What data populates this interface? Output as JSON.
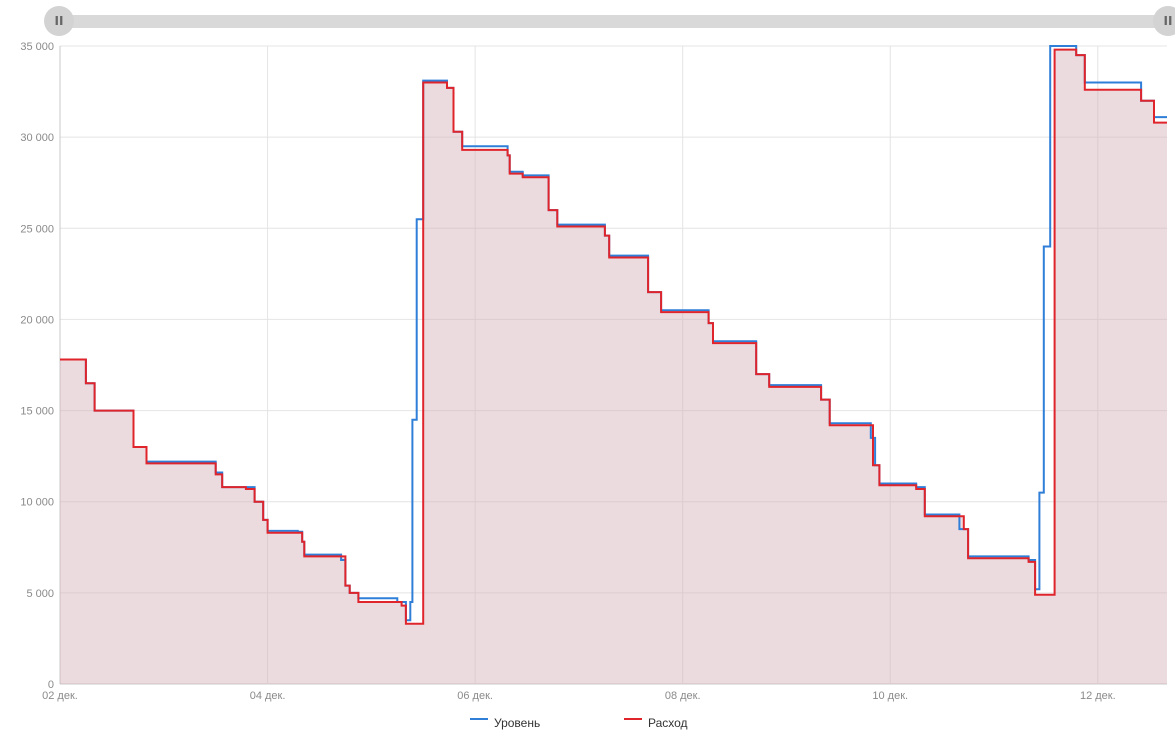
{
  "chart_data": {
    "type": "area",
    "x_type": "datetime",
    "x_range": [
      "2023-12-02T00:00",
      "2023-12-12T16:00"
    ],
    "x_ticks": [
      "02 дек.",
      "04 дек.",
      "06 дек.",
      "08 дек.",
      "10 дек.",
      "12 дек."
    ],
    "x_tick_dates": [
      "2023-12-02",
      "2023-12-04",
      "2023-12-06",
      "2023-12-08",
      "2023-12-10",
      "2023-12-12"
    ],
    "ylim": [
      0,
      35000
    ],
    "y_ticks": [
      "0",
      "5 000",
      "10 000",
      "15 000",
      "20 000",
      "25 000",
      "30 000",
      "35 000"
    ],
    "y_tick_values": [
      0,
      5000,
      10000,
      15000,
      20000,
      25000,
      30000,
      35000
    ],
    "grid": true,
    "legend_position": "bottom",
    "series": [
      {
        "name": "Уровень",
        "color": "#2f7ed8",
        "step": true,
        "points": [
          [
            "2023-12-02T00:00",
            17800
          ],
          [
            "2023-12-02T06:00",
            16500
          ],
          [
            "2023-12-02T08:00",
            15000
          ],
          [
            "2023-12-02T17:00",
            13000
          ],
          [
            "2023-12-02T20:00",
            12200
          ],
          [
            "2023-12-03T12:00",
            11600
          ],
          [
            "2023-12-03T13:30",
            10800
          ],
          [
            "2023-12-03T21:00",
            10000
          ],
          [
            "2023-12-03T23:00",
            9000
          ],
          [
            "2023-12-04T00:00",
            8400
          ],
          [
            "2023-12-04T07:00",
            8350
          ],
          [
            "2023-12-04T08:00",
            7800
          ],
          [
            "2023-12-04T08:30",
            7100
          ],
          [
            "2023-12-04T17:00",
            6800
          ],
          [
            "2023-12-04T18:00",
            5400
          ],
          [
            "2023-12-04T19:00",
            5000
          ],
          [
            "2023-12-04T21:00",
            4700
          ],
          [
            "2023-12-05T06:00",
            4500
          ],
          [
            "2023-12-05T08:00",
            3500
          ],
          [
            "2023-12-05T09:00",
            4500
          ],
          [
            "2023-12-05T09:30",
            14500
          ],
          [
            "2023-12-05T10:30",
            25500
          ],
          [
            "2023-12-05T12:00",
            33100
          ],
          [
            "2023-12-05T17:30",
            32700
          ],
          [
            "2023-12-05T19:00",
            30300
          ],
          [
            "2023-12-05T21:00",
            29500
          ],
          [
            "2023-12-06T07:30",
            29000
          ],
          [
            "2023-12-06T08:00",
            28100
          ],
          [
            "2023-12-06T11:00",
            27900
          ],
          [
            "2023-12-06T17:00",
            26000
          ],
          [
            "2023-12-06T19:00",
            25200
          ],
          [
            "2023-12-07T06:00",
            24600
          ],
          [
            "2023-12-07T07:00",
            23500
          ],
          [
            "2023-12-07T16:00",
            21500
          ],
          [
            "2023-12-07T19:00",
            20500
          ],
          [
            "2023-12-08T06:00",
            19800
          ],
          [
            "2023-12-08T07:00",
            18800
          ],
          [
            "2023-12-08T17:00",
            17000
          ],
          [
            "2023-12-08T20:00",
            16400
          ],
          [
            "2023-12-09T08:00",
            15600
          ],
          [
            "2023-12-09T10:00",
            14300
          ],
          [
            "2023-12-09T19:30",
            13500
          ],
          [
            "2023-12-09T20:30",
            12000
          ],
          [
            "2023-12-09T21:30",
            11000
          ],
          [
            "2023-12-10T06:00",
            10800
          ],
          [
            "2023-12-10T08:00",
            9300
          ],
          [
            "2023-12-10T16:00",
            8500
          ],
          [
            "2023-12-10T18:00",
            7000
          ],
          [
            "2023-12-11T08:00",
            6800
          ],
          [
            "2023-12-11T09:30",
            5200
          ],
          [
            "2023-12-11T10:30",
            10500
          ],
          [
            "2023-12-11T11:30",
            24000
          ],
          [
            "2023-12-11T13:00",
            35000
          ],
          [
            "2023-12-11T19:00",
            34500
          ],
          [
            "2023-12-11T21:00",
            33000
          ],
          [
            "2023-12-12T10:00",
            32000
          ],
          [
            "2023-12-12T13:00",
            31100
          ]
        ]
      },
      {
        "name": "Расход",
        "color": "#e0242b",
        "fill": "rgba(210,175,185,0.45)",
        "step": true,
        "points": [
          [
            "2023-12-02T00:00",
            17800
          ],
          [
            "2023-12-02T06:00",
            16500
          ],
          [
            "2023-12-02T08:00",
            15000
          ],
          [
            "2023-12-02T17:00",
            13000
          ],
          [
            "2023-12-02T20:00",
            12100
          ],
          [
            "2023-12-03T12:00",
            11500
          ],
          [
            "2023-12-03T13:30",
            10800
          ],
          [
            "2023-12-03T19:00",
            10700
          ],
          [
            "2023-12-03T21:00",
            10000
          ],
          [
            "2023-12-03T23:00",
            9000
          ],
          [
            "2023-12-04T00:00",
            8300
          ],
          [
            "2023-12-04T08:00",
            7800
          ],
          [
            "2023-12-04T08:30",
            7000
          ],
          [
            "2023-12-04T18:00",
            5400
          ],
          [
            "2023-12-04T19:00",
            5000
          ],
          [
            "2023-12-04T21:00",
            4500
          ],
          [
            "2023-12-05T07:00",
            4300
          ],
          [
            "2023-12-05T08:00",
            3300
          ],
          [
            "2023-12-05T12:00",
            33000
          ],
          [
            "2023-12-05T17:30",
            32700
          ],
          [
            "2023-12-05T19:00",
            30300
          ],
          [
            "2023-12-05T21:00",
            29300
          ],
          [
            "2023-12-06T07:30",
            29000
          ],
          [
            "2023-12-06T08:00",
            28000
          ],
          [
            "2023-12-06T11:00",
            27800
          ],
          [
            "2023-12-06T17:00",
            26000
          ],
          [
            "2023-12-06T19:00",
            25100
          ],
          [
            "2023-12-07T06:00",
            24600
          ],
          [
            "2023-12-07T07:00",
            23400
          ],
          [
            "2023-12-07T16:00",
            21500
          ],
          [
            "2023-12-07T19:00",
            20400
          ],
          [
            "2023-12-08T06:00",
            19800
          ],
          [
            "2023-12-08T07:00",
            18700
          ],
          [
            "2023-12-08T17:00",
            17000
          ],
          [
            "2023-12-08T20:00",
            16300
          ],
          [
            "2023-12-09T08:00",
            15600
          ],
          [
            "2023-12-09T10:00",
            14200
          ],
          [
            "2023-12-09T20:00",
            12000
          ],
          [
            "2023-12-09T21:30",
            10900
          ],
          [
            "2023-12-10T06:00",
            10700
          ],
          [
            "2023-12-10T08:00",
            9200
          ],
          [
            "2023-12-10T17:00",
            8500
          ],
          [
            "2023-12-10T18:00",
            6900
          ],
          [
            "2023-12-11T08:00",
            6700
          ],
          [
            "2023-12-11T09:30",
            4900
          ],
          [
            "2023-12-11T14:00",
            34800
          ],
          [
            "2023-12-11T19:00",
            34500
          ],
          [
            "2023-12-11T21:00",
            32600
          ],
          [
            "2023-12-12T10:00",
            32000
          ],
          [
            "2023-12-12T13:00",
            30800
          ]
        ]
      }
    ]
  },
  "slider": {
    "left_handle_icon": "grip-icon",
    "right_handle_icon": "grip-icon",
    "grip_glyph": "II"
  }
}
